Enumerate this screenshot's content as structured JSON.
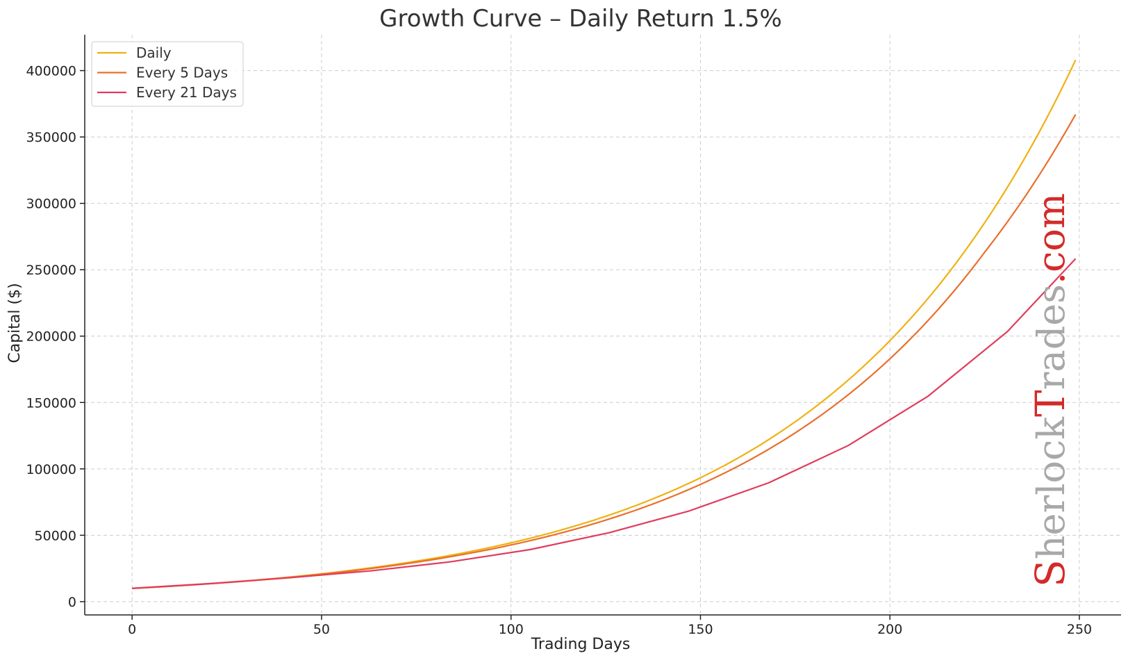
{
  "chart_data": {
    "type": "line",
    "title": "Growth Curve – Daily Return 1.5%",
    "xlabel": "Trading Days",
    "ylabel": "Capital ($)",
    "xlim": [
      -12.5,
      261
    ],
    "ylim": [
      -10000,
      427000
    ],
    "xticks": [
      0,
      50,
      100,
      150,
      200,
      250
    ],
    "yticks": [
      0,
      50000,
      100000,
      150000,
      200000,
      250000,
      300000,
      350000,
      400000
    ],
    "grid": true,
    "legend_position": "top-left",
    "series": [
      {
        "name": "Daily",
        "color": "#f0b010",
        "x": [
          0,
          25,
          50,
          75,
          100,
          125,
          150,
          175,
          200,
          225,
          249
        ],
        "y": [
          10000,
          14500,
          21000,
          30500,
          44300,
          64300,
          93300,
          135500,
          196600,
          285400,
          408000
        ]
      },
      {
        "name": "Every 5 Days",
        "color": "#e96f2c",
        "x": [
          0,
          25,
          50,
          75,
          100,
          125,
          150,
          175,
          200,
          225,
          249
        ],
        "y": [
          10000,
          14400,
          20600,
          29700,
          42700,
          61400,
          88300,
          127100,
          182900,
          263200,
          367000
        ]
      },
      {
        "name": "Every 21 Days",
        "color": "#e03c5c",
        "x": [
          0,
          21,
          42,
          63,
          84,
          105,
          126,
          147,
          168,
          189,
          210,
          231,
          249
        ],
        "y": [
          10000,
          13700,
          18100,
          23200,
          30000,
          39200,
          52000,
          68300,
          89500,
          117600,
          154600,
          203400,
          258300
        ]
      }
    ]
  },
  "watermark": {
    "parts": [
      "S",
      "herlock",
      "T",
      "rades",
      ".com"
    ],
    "colors": [
      "#d42a2a",
      "#a8a8a8",
      "#d42a2a",
      "#a8a8a8",
      "#d42a2a"
    ]
  }
}
